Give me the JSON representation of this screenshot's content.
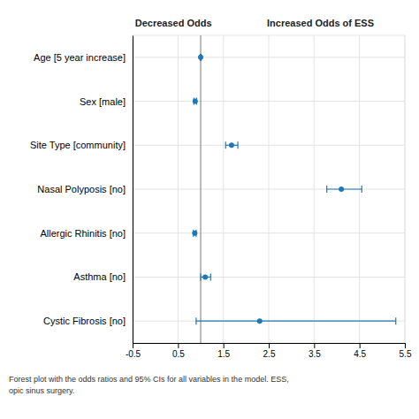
{
  "chart_data": {
    "type": "forest",
    "categories": [
      "Age [5 year increase]",
      "Sex [male]",
      "Site Type [community]",
      "Nasal Polyposis [no]",
      "Allergic Rhinitis [no]",
      "Asthma [no]",
      "Cystic Fibrosis [no]"
    ],
    "values": [
      1.0,
      0.88,
      1.68,
      4.1,
      0.87,
      1.1,
      2.3
    ],
    "ci_lower": [
      0.99,
      0.85,
      1.55,
      3.78,
      0.84,
      1.0,
      0.9
    ],
    "ci_upper": [
      1.01,
      0.91,
      1.82,
      4.55,
      0.9,
      1.22,
      5.3
    ],
    "reference_line": 1.0,
    "xlim": [
      -0.5,
      5.5
    ],
    "xticks": [
      -0.5,
      0.5,
      1.5,
      2.5,
      3.5,
      4.5,
      5.5
    ],
    "grid": true,
    "header_left": "Decreased Odds",
    "header_right": "Increased Odds of ESS",
    "caption": [
      "Forest plot with the odds ratios and 95% CIs for all variables in the model. ESS,",
      "opic sinus surgery."
    ]
  }
}
